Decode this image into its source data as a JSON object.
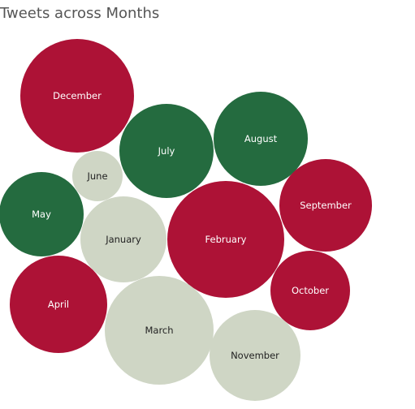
{
  "chart_data": {
    "type": "bubble",
    "title": "Tweets across Months",
    "colors": {
      "red": "#ad1236",
      "green": "#246b3f",
      "grey": "#cfd6c5"
    },
    "label_colors": {
      "on_dark": "#ffffff",
      "on_light": "#222222"
    },
    "bubbles": [
      {
        "label": "December",
        "color": "red"
      },
      {
        "label": "July",
        "color": "green"
      },
      {
        "label": "August",
        "color": "green"
      },
      {
        "label": "June",
        "color": "grey"
      },
      {
        "label": "May",
        "color": "green"
      },
      {
        "label": "January",
        "color": "grey"
      },
      {
        "label": "February",
        "color": "red"
      },
      {
        "label": "September",
        "color": "red"
      },
      {
        "label": "April",
        "color": "red"
      },
      {
        "label": "March",
        "color": "grey"
      },
      {
        "label": "October",
        "color": "red"
      },
      {
        "label": "November",
        "color": "grey"
      }
    ]
  }
}
